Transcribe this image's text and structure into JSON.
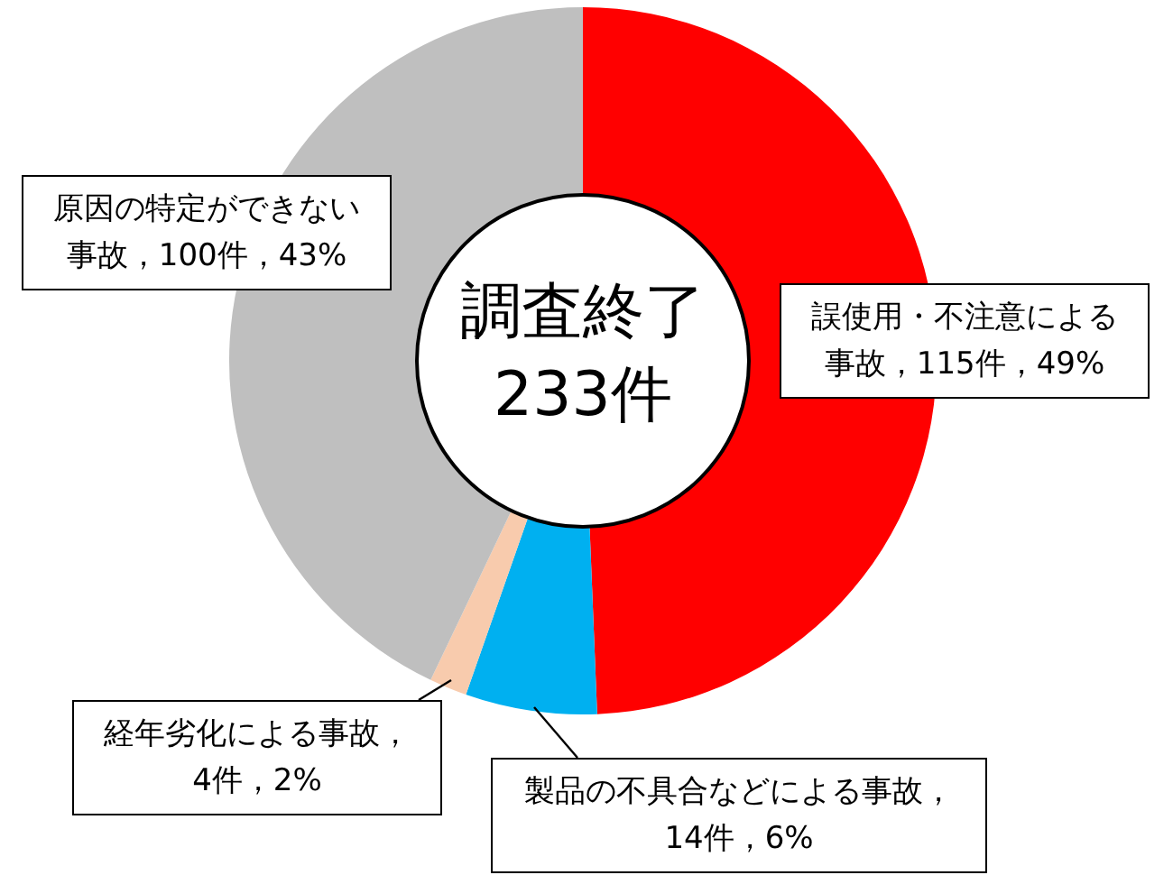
{
  "chart_data": {
    "type": "donut",
    "title": "調査終了 233件",
    "categories": [
      "誤使用・不注意による事故，115件，49%",
      "製品の不具合などによる事故，14件，6%",
      "経年劣化による事故，4件，2%",
      "原因の特定ができない事故，100件，43%"
    ],
    "values": [
      115,
      14,
      4,
      100
    ],
    "colors": [
      "#ff0000",
      "#00b0f0",
      "#f8cbad",
      "#bfbfbf"
    ],
    "legend": false
  }
}
